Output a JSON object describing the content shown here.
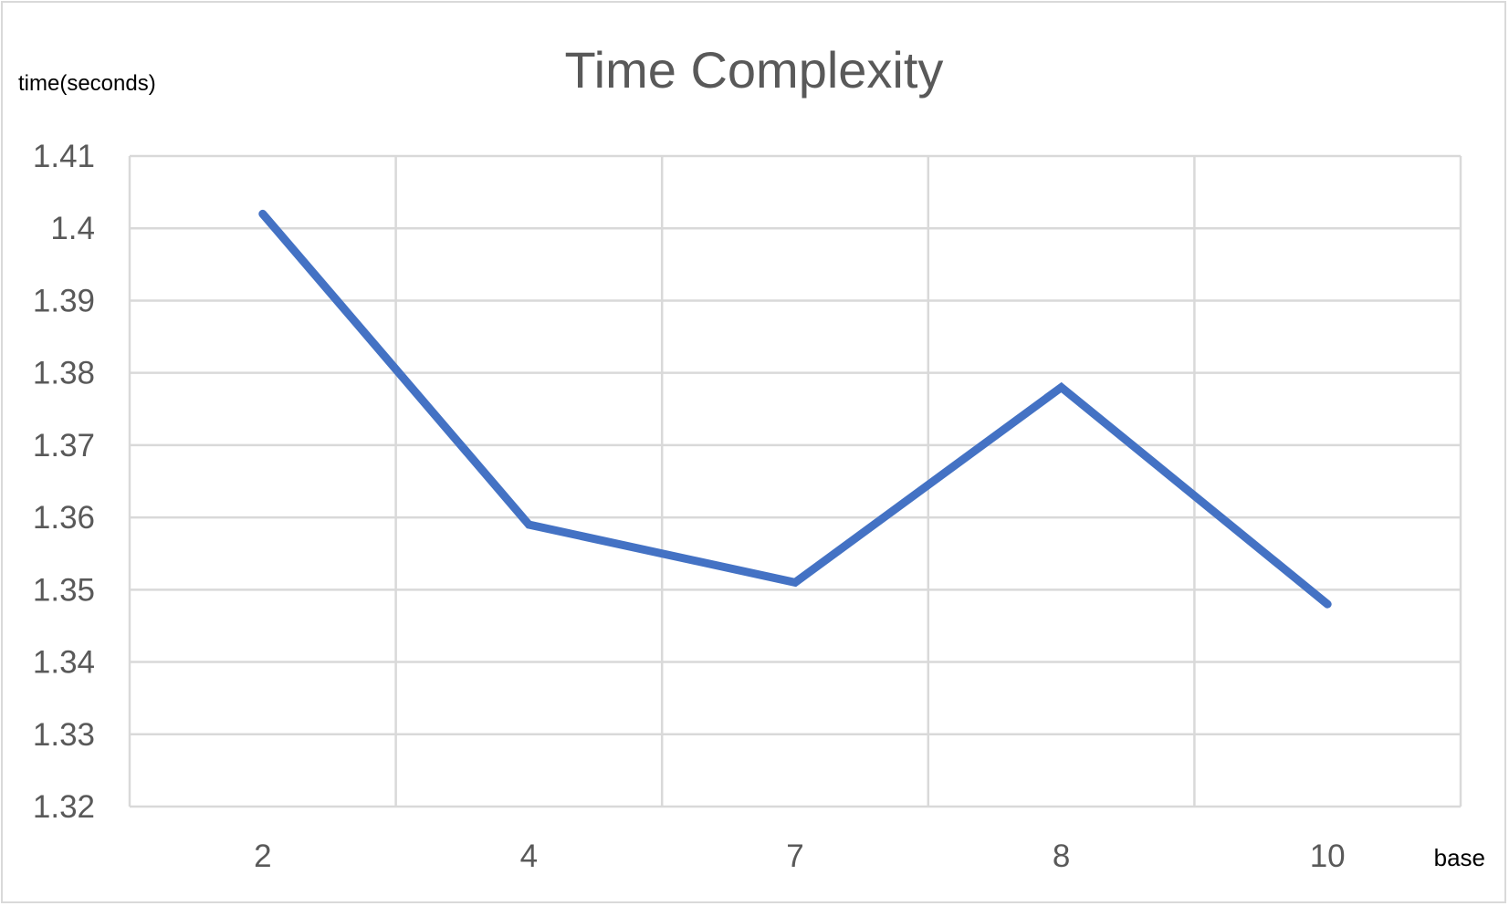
{
  "chart_data": {
    "type": "line",
    "title": "Time Complexity",
    "xlabel": "base",
    "ylabel": "time(seconds)",
    "categories": [
      "2",
      "4",
      "7",
      "8",
      "10"
    ],
    "series": [
      {
        "values": [
          1.402,
          1.359,
          1.351,
          1.378,
          1.348
        ]
      }
    ],
    "ylim": [
      1.32,
      1.41
    ],
    "yticks": [
      "1.32",
      "1.33",
      "1.34",
      "1.35",
      "1.36",
      "1.37",
      "1.38",
      "1.39",
      "1.4",
      "1.41"
    ],
    "grid": true,
    "legend": "none",
    "colors": {
      "series": "#4472c4",
      "grid": "#d9d9d9",
      "text": "#595959"
    }
  }
}
